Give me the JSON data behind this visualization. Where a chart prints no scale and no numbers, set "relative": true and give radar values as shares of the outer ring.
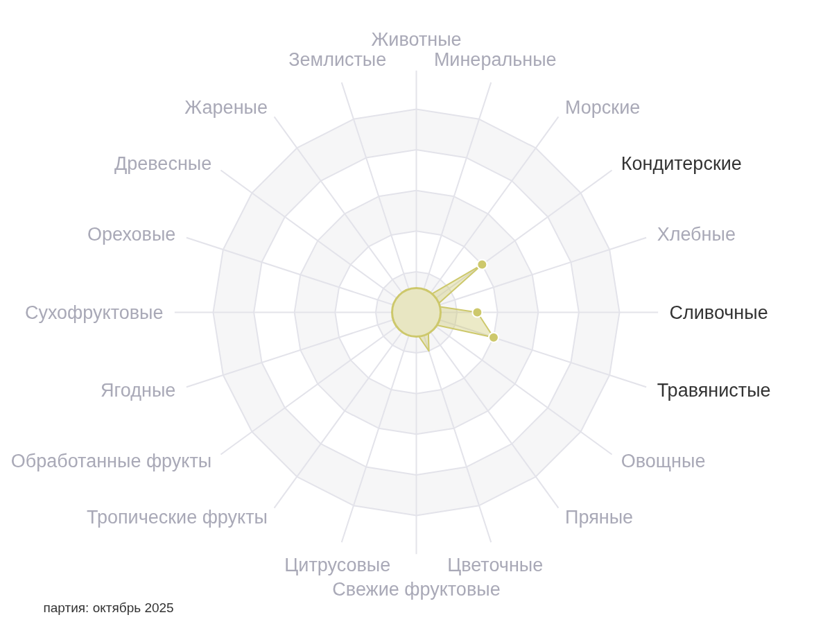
{
  "chart_data": {
    "type": "radar",
    "relative": true,
    "categories": [
      "Животные",
      "Минеральные",
      "Морские",
      "Кондитерские",
      "Хлебные",
      "Сливочные",
      "Травянистые",
      "Овощные",
      "Пряные",
      "Цветочные",
      "Свежие фруктовые",
      "Цитрусовые",
      "Тропические фрукты",
      "Обработанные фрукты",
      "Ягодные",
      "Сухофруктовые",
      "Ореховые",
      "Древесные",
      "Жареные",
      "Землистые"
    ],
    "series": [
      {
        "color": "#cdc86b",
        "values": [
          0,
          0,
          0.1,
          0.4,
          0.1,
          0.3,
          0.4,
          0.1,
          0.1,
          0.2,
          0.1,
          0,
          0,
          0,
          0,
          0,
          0,
          0,
          0,
          0
        ],
        "colors": [
          null,
          null,
          null,
          "#cdc86b",
          null,
          "#cdc86b",
          "#cdc86b",
          null,
          null,
          null,
          null,
          null,
          null,
          null,
          null,
          null,
          null,
          null,
          null,
          null
        ]
      }
    ],
    "grid": true,
    "marker": "circle",
    "annotations": [
      "партия: октябрь 2025"
    ]
  }
}
